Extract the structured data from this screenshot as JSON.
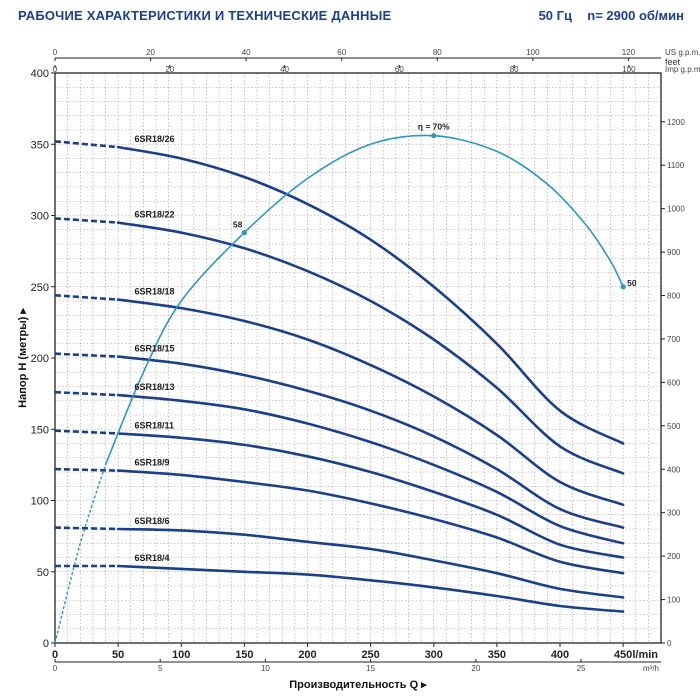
{
  "header": {
    "title": "РАБОЧИЕ ХАРАКТЕРИСТИКИ И ТЕХНИЧЕСКИЕ ДАННЫЕ",
    "frequency": "50 Гц",
    "speed": "n= 2900 об/мин"
  },
  "chart_data": {
    "type": "line",
    "xlabel": "Производительность Q",
    "ylabel": "Напор H (метры)",
    "x_unit": "l/min",
    "xlim": [
      0,
      450
    ],
    "ylim": [
      0,
      400
    ],
    "x_ticks": [
      0,
      50,
      100,
      150,
      200,
      250,
      300,
      350,
      400,
      450
    ],
    "y_ticks": [
      0,
      50,
      100,
      150,
      200,
      250,
      300,
      350,
      400
    ],
    "secondary_axes": {
      "m3h": {
        "unit": "m³/h",
        "ticks": [
          0,
          5,
          10,
          15,
          20,
          25
        ]
      },
      "usgpm": {
        "unit": "US g.p.m.",
        "ticks": [
          0,
          20,
          40,
          60,
          80,
          100,
          120
        ]
      },
      "impgpm": {
        "unit": "Imp g.p.m.",
        "ticks": [
          0,
          20,
          40,
          60,
          80,
          100
        ]
      },
      "feet": {
        "unit": "feet",
        "ticks": [
          0,
          100,
          200,
          300,
          400,
          500,
          600,
          700,
          800,
          900,
          1000,
          1100,
          1200
        ]
      }
    },
    "series": [
      {
        "name": "6SR18/26",
        "q": [
          0,
          50,
          100,
          150,
          200,
          250,
          300,
          350,
          400,
          450
        ],
        "h": [
          352,
          348,
          340,
          327,
          308,
          283,
          250,
          210,
          163,
          140
        ]
      },
      {
        "name": "6SR18/22",
        "q": [
          0,
          50,
          100,
          150,
          200,
          250,
          300,
          350,
          400,
          450
        ],
        "h": [
          298,
          295,
          288,
          277,
          261,
          240,
          213,
          179,
          138,
          119
        ]
      },
      {
        "name": "6SR18/18",
        "q": [
          0,
          50,
          100,
          150,
          200,
          250,
          300,
          350,
          400,
          450
        ],
        "h": [
          244,
          241,
          235,
          226,
          213,
          195,
          173,
          146,
          113,
          97
        ]
      },
      {
        "name": "6SR18/15",
        "q": [
          0,
          50,
          100,
          150,
          200,
          250,
          300,
          350,
          400,
          450
        ],
        "h": [
          203,
          201,
          196,
          188,
          177,
          163,
          145,
          122,
          94,
          81
        ]
      },
      {
        "name": "6SR18/13",
        "q": [
          0,
          50,
          100,
          150,
          200,
          250,
          300,
          350,
          400,
          450
        ],
        "h": [
          176,
          174,
          170,
          164,
          154,
          141,
          125,
          106,
          82,
          70
        ]
      },
      {
        "name": "6SR18/11",
        "q": [
          0,
          50,
          100,
          150,
          200,
          250,
          300,
          350,
          400,
          450
        ],
        "h": [
          149,
          147,
          144,
          139,
          131,
          120,
          106,
          90,
          69,
          60
        ]
      },
      {
        "name": "6SR18/9",
        "q": [
          0,
          50,
          100,
          150,
          200,
          250,
          300,
          350,
          400,
          450
        ],
        "h": [
          122,
          121,
          118,
          113,
          107,
          98,
          87,
          74,
          57,
          49
        ]
      },
      {
        "name": "6SR18/6",
        "q": [
          0,
          50,
          100,
          150,
          200,
          250,
          300,
          350,
          400,
          450
        ],
        "h": [
          81,
          80,
          79,
          76,
          71,
          66,
          58,
          49,
          38,
          32
        ]
      },
      {
        "name": "6SR18/4",
        "q": [
          0,
          50,
          100,
          150,
          200,
          250,
          300,
          350,
          400,
          450
        ],
        "h": [
          54,
          54,
          52,
          50,
          48,
          44,
          39,
          33,
          26,
          22
        ]
      }
    ],
    "efficiency_curve": {
      "q": [
        0,
        20,
        40,
        70,
        100,
        150,
        200,
        250,
        300,
        350,
        390,
        420,
        440,
        450
      ],
      "h": [
        0,
        70,
        125,
        190,
        240,
        288,
        326,
        350,
        356,
        345,
        322,
        294,
        268,
        250
      ],
      "labels": [
        {
          "text": "η = 70%",
          "q": 300,
          "h": 356
        },
        {
          "text": "58",
          "q": 150,
          "h": 288
        },
        {
          "text": "50",
          "q": 450,
          "h": 250
        }
      ]
    },
    "grid": true
  },
  "colors": {
    "curve": "#1c3f8a",
    "efficiency": "#2d96c8",
    "grid": "#9a9a9a",
    "title": "#1b3f8f"
  }
}
